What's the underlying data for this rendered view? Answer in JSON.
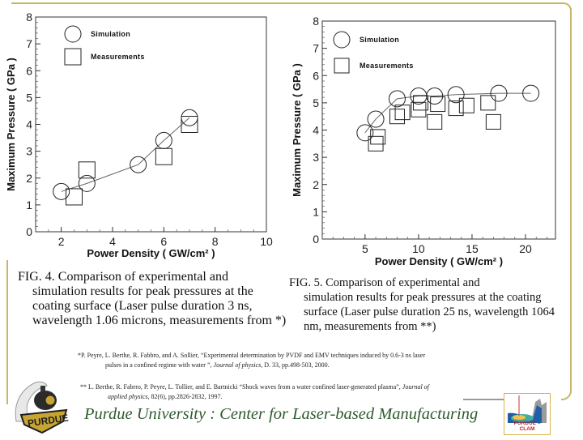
{
  "colors": {
    "frame": "#c9b56a",
    "footer_text": "#2f5a2f",
    "clam_label": "#c0262c",
    "purdue_gold": "#c8a532"
  },
  "chart_data": [
    {
      "type": "scatter",
      "id": "fig4",
      "xlabel": "Power Density ( GW/cm² )",
      "ylabel": "Maximum Pressure ( GPa )",
      "xlim": [
        1,
        10
      ],
      "ylim": [
        0,
        8
      ],
      "xticks": [
        2,
        4,
        6,
        8,
        10
      ],
      "yticks": [
        0,
        1,
        2,
        3,
        4,
        5,
        6,
        7,
        8
      ],
      "grid": false,
      "legend_position": "top-left",
      "series": [
        {
          "name": "Simulation",
          "marker": "circle",
          "line": true,
          "points": [
            [
              2,
              1.5
            ],
            [
              3,
              1.8
            ],
            [
              5,
              2.5
            ],
            [
              6,
              3.4
            ],
            [
              7,
              4.25
            ]
          ]
        },
        {
          "name": "Measurements",
          "marker": "square",
          "line": false,
          "points": [
            [
              2.5,
              1.3
            ],
            [
              3,
              2.3
            ],
            [
              6,
              2.8
            ],
            [
              7,
              4.0
            ]
          ]
        }
      ]
    },
    {
      "type": "scatter",
      "id": "fig5",
      "xlabel": "Power Density ( GW/cm² )",
      "ylabel": "Maximum Pressure ( GPa )",
      "xlim": [
        1,
        22.8
      ],
      "ylim": [
        0,
        8
      ],
      "xticks": [
        5,
        10,
        15,
        20
      ],
      "yticks": [
        0,
        1,
        2,
        3,
        4,
        5,
        6,
        7,
        8
      ],
      "grid": false,
      "legend_position": "top-left",
      "series": [
        {
          "name": "Simulation",
          "marker": "circle",
          "line": true,
          "points": [
            [
              5,
              3.9
            ],
            [
              6,
              4.4
            ],
            [
              8,
              5.15
            ],
            [
              10,
              5.25
            ],
            [
              11.5,
              5.25
            ],
            [
              13.5,
              5.3
            ],
            [
              17.5,
              5.35
            ],
            [
              20.5,
              5.35
            ]
          ]
        },
        {
          "name": "Measurements",
          "marker": "square",
          "line": false,
          "points": [
            [
              6,
              3.5
            ],
            [
              6.2,
              3.75
            ],
            [
              8,
              4.5
            ],
            [
              8.5,
              4.65
            ],
            [
              10,
              4.75
            ],
            [
              10.2,
              5.0
            ],
            [
              11.5,
              4.3
            ],
            [
              11.8,
              4.95
            ],
            [
              13.5,
              4.8
            ],
            [
              14.5,
              4.9
            ],
            [
              16.5,
              5.0
            ],
            [
              17,
              4.3
            ]
          ]
        }
      ]
    }
  ],
  "captions": {
    "fig4": {
      "first": "FIG. 4. Comparison of experimental and",
      "rest": "simulation results for peak pressures at the coating surface (Laser pulse duration 3 ns, wavelength 1.06 microns, measurements from *)"
    },
    "fig5": {
      "first": "FIG. 5. Comparison of experimental and",
      "rest": "simulation results for peak pressures at the coating surface (Laser pulse duration 25 ns, wavelength 1064 nm, measurements from **)"
    }
  },
  "references": {
    "ref1": {
      "line1": "*P. Peyre, L. Berthe, R. Fabbro, and A. Sollier, “Experimental determination by  PVDF and EMV techniques induced by 0.6-3 ns laser",
      "line2_a": "pulses in a confined regime with water ”, ",
      "line2_journal": "Journal of physics",
      "line2_b": ", D. 33, pp.498-503, 2000."
    },
    "ref2": {
      "line1_a": "**   L. Berthe, R. Fabrro, P. Peyre, L. Tollier, and E. Bartnicki “Shock waves from a  water confined laser-generated plasma”, ",
      "line1_journal": "Journal of",
      "line2_journal": "applied physics",
      "line2_b": ", 82(6),      pp.2826-2832, 1997."
    }
  },
  "footer": {
    "title": "Purdue University :  Center for Laser-based Manufacturing",
    "clam_logo_label": "PURDUE – CLAM",
    "purdue_logo_label": "PURDUE"
  }
}
